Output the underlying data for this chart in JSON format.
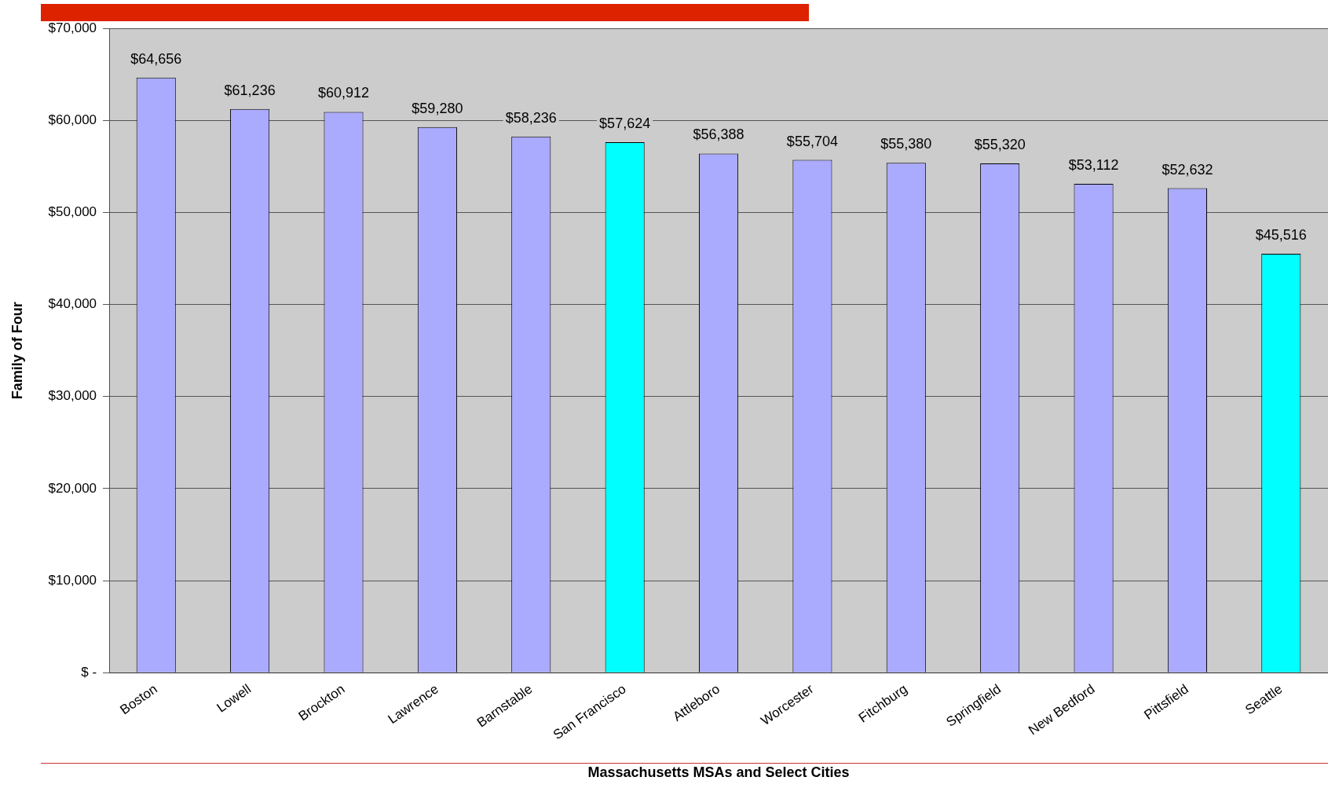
{
  "chart_data": {
    "type": "bar",
    "xlabel": "Massachusetts MSAs and Select Cities",
    "ylabel": "Family of Four",
    "categories": [
      "Boston",
      "Lowell",
      "Brockton",
      "Lawrence",
      "Barnstable",
      "San Francisco",
      "Attleboro",
      "Worcester",
      "Fitchburg",
      "Springfield",
      "New Bedford",
      "Pittsfield",
      "Seattle"
    ],
    "values": [
      64656,
      61236,
      60912,
      59280,
      58236,
      57624,
      56388,
      55704,
      55380,
      55320,
      53112,
      52632,
      45516
    ],
    "colors": [
      "#aaaaff",
      "#aaaaff",
      "#aaaaff",
      "#aaaaff",
      "#aaaaff",
      "#00ffff",
      "#aaaaff",
      "#aaaaff",
      "#aaaaff",
      "#aaaaff",
      "#aaaaff",
      "#aaaaff",
      "#00ffff"
    ],
    "value_labels": [
      "$64,656",
      "$61,236",
      "$60,912",
      "$59,280",
      "$58,236",
      "$57,624",
      "$56,388",
      "$55,704",
      "$55,380",
      "$55,320",
      "$53,112",
      "$52,632",
      "$45,516"
    ],
    "ylim": [
      0,
      70000
    ],
    "yticks": [
      {
        "value": 0,
        "label": "$ -"
      },
      {
        "value": 10000,
        "label": "$10,000"
      },
      {
        "value": 20000,
        "label": "$20,000"
      },
      {
        "value": 30000,
        "label": "$30,000"
      },
      {
        "value": 40000,
        "label": "$40,000"
      },
      {
        "value": 50000,
        "label": "$50,000"
      },
      {
        "value": 60000,
        "label": "$60,000"
      },
      {
        "value": 70000,
        "label": "$70,000"
      }
    ],
    "grid": "y",
    "legend": false
  }
}
